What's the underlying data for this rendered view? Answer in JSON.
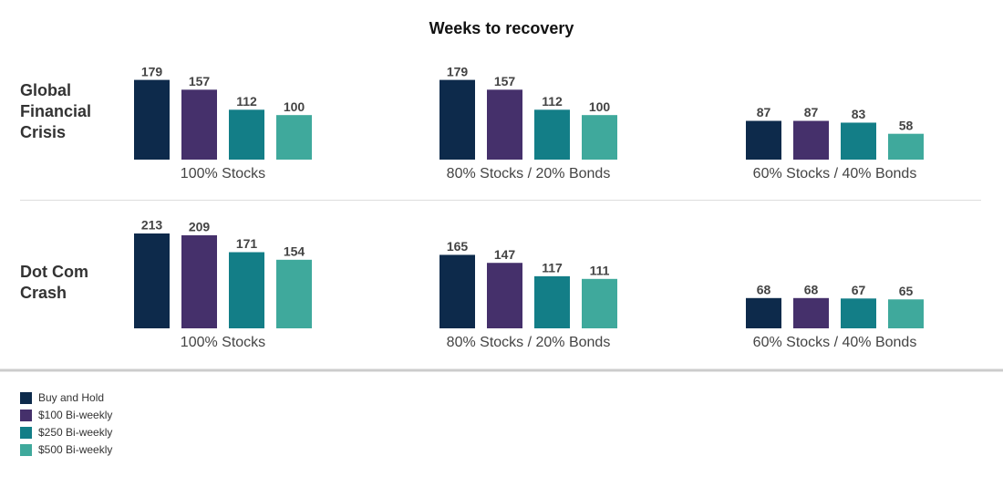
{
  "chart_data": {
    "type": "bar",
    "title": "Weeks to recovery",
    "series": [
      {
        "name": "Buy and Hold",
        "color": "#0d2a4b"
      },
      {
        "name": "$100 Bi-weekly",
        "color": "#45306b"
      },
      {
        "name": "$250 Bi-weekly",
        "color": "#137e87"
      },
      {
        "name": "$500 Bi-weekly",
        "color": "#3fa99c"
      }
    ],
    "rows": [
      {
        "label": "Global Financial Crisis",
        "panels": [
          {
            "label": "100% Stocks",
            "values": [
              179,
              157,
              112,
              100
            ]
          },
          {
            "label": "80% Stocks / 20% Bonds",
            "values": [
              179,
              157,
              112,
              100
            ]
          },
          {
            "label": "60% Stocks / 40% Bonds",
            "values": [
              87,
              87,
              83,
              58
            ]
          }
        ]
      },
      {
        "label": "Dot Com Crash",
        "panels": [
          {
            "label": "100% Stocks",
            "values": [
              213,
              209,
              171,
              154
            ]
          },
          {
            "label": "80% Stocks / 20% Bonds",
            "values": [
              165,
              147,
              117,
              111
            ]
          },
          {
            "label": "60% Stocks / 40% Bonds",
            "values": [
              68,
              68,
              67,
              65
            ]
          }
        ]
      }
    ]
  }
}
